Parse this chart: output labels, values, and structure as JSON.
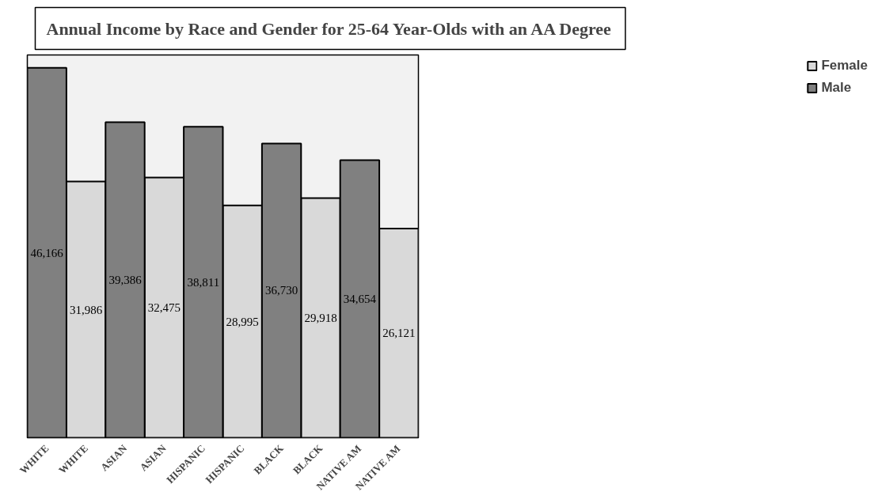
{
  "chart_data": {
    "type": "bar",
    "title": "Annual Income by Race and Gender for 25-64 Year-Olds with an AA Degree",
    "categories": [
      "WHITE",
      "WHITE",
      "ASIAN",
      "ASIAN",
      "HISPANIC",
      "HISPANIC",
      "BLACK",
      "BLACK",
      "NATIVE AM",
      "NATIVE AM"
    ],
    "series": [
      {
        "name": "Female",
        "color": "#d9d9d9",
        "values": [
          null,
          31986,
          null,
          32475,
          null,
          28995,
          null,
          29918,
          null,
          26121
        ],
        "value_labels": [
          null,
          "31,986",
          null,
          "32,475",
          null,
          "28,995",
          null,
          "29,918",
          null,
          "26,121"
        ]
      },
      {
        "name": "Male",
        "color": "#808080",
        "values": [
          46166,
          null,
          39386,
          null,
          38811,
          null,
          36730,
          null,
          34654,
          null
        ],
        "value_labels": [
          "46,166",
          null,
          "39,386",
          null,
          "38,811",
          null,
          "36,730",
          null,
          "34,654",
          null
        ]
      }
    ],
    "grid": false,
    "legend": "right"
  }
}
